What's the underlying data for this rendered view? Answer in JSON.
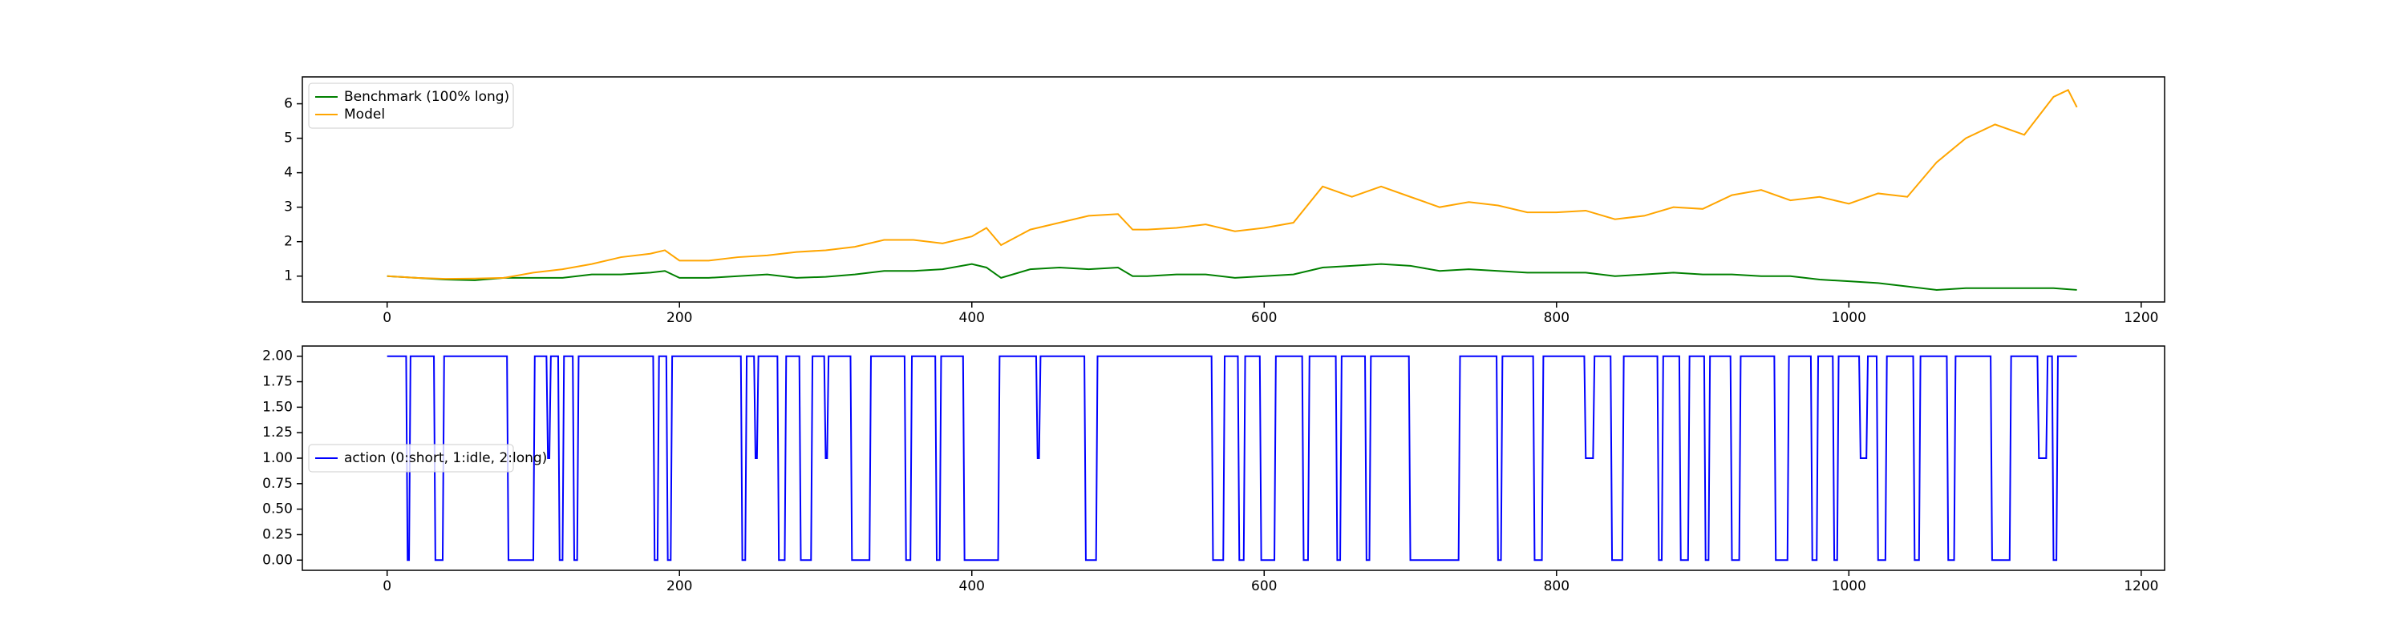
{
  "chart_data": [
    {
      "type": "line",
      "x": [
        0,
        20,
        40,
        60,
        80,
        100,
        120,
        140,
        160,
        180,
        190,
        200,
        220,
        240,
        260,
        280,
        300,
        320,
        340,
        360,
        380,
        400,
        410,
        420,
        440,
        460,
        480,
        500,
        510,
        520,
        540,
        560,
        580,
        600,
        620,
        640,
        660,
        680,
        700,
        720,
        740,
        760,
        780,
        800,
        820,
        840,
        860,
        880,
        900,
        920,
        940,
        960,
        980,
        1000,
        1020,
        1040,
        1060,
        1080,
        1100,
        1120,
        1140,
        1150,
        1156
      ],
      "series": [
        {
          "name": "Benchmark (100% long)",
          "color": "#008000",
          "values": [
            1.0,
            0.95,
            0.9,
            0.88,
            0.95,
            0.95,
            0.95,
            1.05,
            1.05,
            1.1,
            1.15,
            0.95,
            0.95,
            1.0,
            1.05,
            0.95,
            0.98,
            1.05,
            1.15,
            1.15,
            1.2,
            1.35,
            1.25,
            0.95,
            1.2,
            1.25,
            1.2,
            1.25,
            1.0,
            1.0,
            1.05,
            1.05,
            0.95,
            1.0,
            1.05,
            1.25,
            1.3,
            1.35,
            1.3,
            1.15,
            1.2,
            1.15,
            1.1,
            1.1,
            1.1,
            1.0,
            1.05,
            1.1,
            1.05,
            1.05,
            1.0,
            1.0,
            0.9,
            0.85,
            0.8,
            0.7,
            0.6,
            0.65,
            0.65,
            0.65,
            0.65,
            0.62,
            0.6
          ]
        },
        {
          "name": "Model",
          "color": "#ffa500",
          "values": [
            1.0,
            0.95,
            0.92,
            0.93,
            0.95,
            1.1,
            1.2,
            1.35,
            1.55,
            1.65,
            1.75,
            1.45,
            1.45,
            1.55,
            1.6,
            1.7,
            1.75,
            1.85,
            2.05,
            2.05,
            1.95,
            2.15,
            2.4,
            1.9,
            2.35,
            2.55,
            2.75,
            2.8,
            2.35,
            2.35,
            2.4,
            2.5,
            2.3,
            2.4,
            2.55,
            3.6,
            3.3,
            3.6,
            3.3,
            3.0,
            3.15,
            3.05,
            2.85,
            2.85,
            2.9,
            2.65,
            2.75,
            3.0,
            2.95,
            3.35,
            3.5,
            3.2,
            3.3,
            3.1,
            3.4,
            3.3,
            4.3,
            5.0,
            5.4,
            5.1,
            6.2,
            6.4,
            5.9
          ]
        }
      ],
      "xlim": [
        -58,
        1216
      ],
      "xticks": [
        0,
        200,
        400,
        600,
        800,
        1000,
        1200
      ],
      "ylim": [
        0.25,
        6.78
      ],
      "yticks": [
        1,
        2,
        3,
        4,
        5,
        6
      ],
      "legend": "upper left"
    },
    {
      "type": "line",
      "x": [
        0,
        13,
        14,
        15,
        16,
        32,
        33,
        38,
        39,
        82,
        83,
        100,
        101,
        109,
        110,
        111,
        112,
        117,
        118,
        120,
        121,
        127,
        128,
        130,
        131,
        182,
        183,
        185,
        186,
        191,
        192,
        194,
        195,
        242,
        243,
        245,
        246,
        251,
        252,
        253,
        254,
        267,
        268,
        272,
        273,
        282,
        283,
        290,
        291,
        299,
        300,
        301,
        302,
        317,
        318,
        330,
        331,
        354,
        355,
        358,
        359,
        375,
        376,
        378,
        379,
        394,
        395,
        418,
        419,
        444,
        445,
        446,
        447,
        477,
        478,
        485,
        486,
        564,
        565,
        572,
        573,
        582,
        583,
        586,
        587,
        597,
        598,
        607,
        608,
        626,
        627,
        630,
        631,
        649,
        650,
        652,
        653,
        669,
        670,
        672,
        673,
        699,
        700,
        733,
        734,
        759,
        760,
        762,
        763,
        784,
        785,
        790,
        791,
        819,
        820,
        825,
        826,
        837,
        838,
        845,
        846,
        869,
        870,
        872,
        873,
        884,
        885,
        890,
        891,
        901,
        902,
        904,
        905,
        919,
        920,
        925,
        926,
        949,
        950,
        958,
        959,
        974,
        975,
        978,
        979,
        989,
        990,
        992,
        993,
        1007,
        1008,
        1012,
        1013,
        1019,
        1020,
        1025,
        1026,
        1044,
        1045,
        1048,
        1049,
        1067,
        1068,
        1072,
        1073,
        1097,
        1098,
        1110,
        1111,
        1129,
        1130,
        1135,
        1136,
        1139,
        1140,
        1142,
        1143,
        1156
      ],
      "series": [
        {
          "name": "action (0:short, 1:idle, 2:long)",
          "color": "#0000ff",
          "values": [
            2,
            2,
            0,
            0,
            2,
            2,
            0,
            0,
            2,
            2,
            0,
            0,
            2,
            2,
            1,
            1,
            2,
            2,
            0,
            0,
            2,
            2,
            0,
            0,
            2,
            2,
            0,
            0,
            2,
            2,
            0,
            0,
            2,
            2,
            0,
            0,
            2,
            2,
            1,
            1,
            2,
            2,
            0,
            0,
            2,
            2,
            0,
            0,
            2,
            2,
            1,
            1,
            2,
            2,
            0,
            0,
            2,
            2,
            0,
            0,
            2,
            2,
            0,
            0,
            2,
            2,
            0,
            0,
            2,
            2,
            1,
            1,
            2,
            2,
            0,
            0,
            2,
            2,
            0,
            0,
            2,
            2,
            0,
            0,
            2,
            2,
            0,
            0,
            2,
            2,
            0,
            0,
            2,
            2,
            0,
            0,
            2,
            2,
            0,
            0,
            2,
            2,
            0,
            0,
            2,
            2,
            0,
            0,
            2,
            2,
            0,
            0,
            2,
            2,
            1,
            1,
            2,
            2,
            0,
            0,
            2,
            2,
            0,
            0,
            2,
            2,
            0,
            0,
            2,
            2,
            0,
            0,
            2,
            2,
            0,
            0,
            2,
            2,
            0,
            0,
            2,
            2,
            0,
            0,
            2,
            2,
            0,
            0,
            2,
            2,
            1,
            1,
            2,
            2,
            0,
            0,
            2,
            2,
            0,
            0,
            2,
            2,
            0,
            0,
            2,
            2,
            0,
            0,
            2,
            2,
            1,
            1,
            2,
            2,
            0,
            0,
            2,
            2
          ]
        }
      ],
      "xlim": [
        -58,
        1216
      ],
      "xticks": [
        0,
        200,
        400,
        600,
        800,
        1000,
        1200
      ],
      "ylim": [
        -0.1,
        2.1
      ],
      "yticks": [
        {
          "value": 0,
          "label": "0.00"
        },
        {
          "value": 0.25,
          "label": "0.25"
        },
        {
          "value": 0.5,
          "label": "0.50"
        },
        {
          "value": 0.75,
          "label": "0.75"
        },
        {
          "value": 1,
          "label": "1.00"
        },
        {
          "value": 1.25,
          "label": "1.25"
        },
        {
          "value": 1.5,
          "label": "1.50"
        },
        {
          "value": 1.75,
          "label": "1.75"
        },
        {
          "value": 2,
          "label": "2.00"
        }
      ],
      "legend": "center left"
    }
  ]
}
